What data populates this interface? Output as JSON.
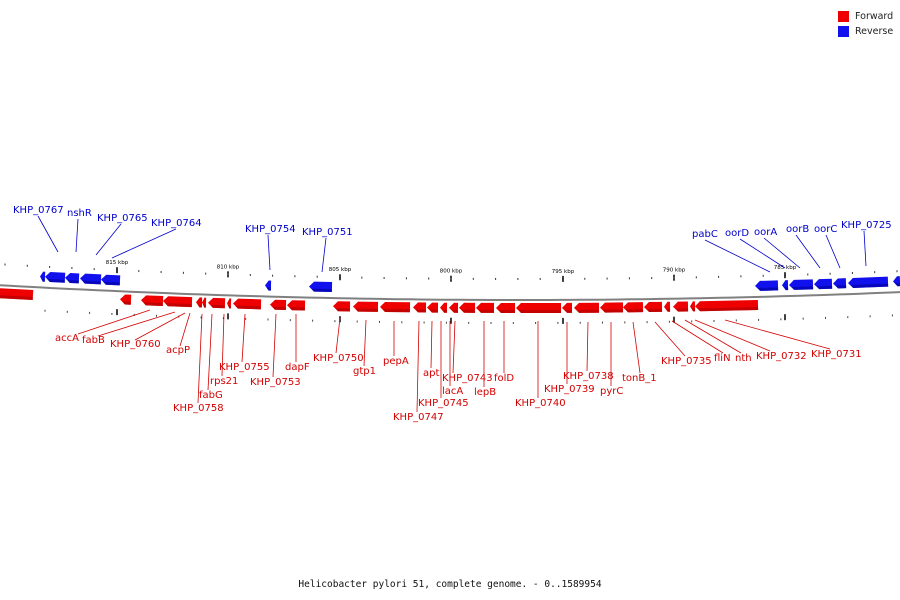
{
  "colors": {
    "forward": "#ee0000",
    "reverse": "#1111ee",
    "forward_dark": "#a80000",
    "reverse_dark": "#000099",
    "backbone": "#808080"
  },
  "legend": [
    {
      "label": "Forward",
      "color": "#ee0000"
    },
    {
      "label": "Reverse",
      "color": "#1111ee"
    }
  ],
  "caption": "Helicobacter pylori 51, complete genome. - 0..1589954",
  "scale_labels": [
    "815 kbp",
    "810 kbp",
    "805 kbp",
    "800 kbp",
    "795 kbp",
    "790 kbp",
    "785 kbp"
  ],
  "forward_labels": [
    "accA",
    "fabB",
    "KHP_0760",
    "acpP",
    "fabG",
    "KHP_0758",
    "rps21",
    "KHP_0755",
    "KHP_0753",
    "dapF",
    "KHP_0750",
    "gtp1",
    "pepA",
    "KHP_0747",
    "apt",
    "KHP_0745",
    "lacA",
    "KHP_0743",
    "lepB",
    "folD",
    "KHP_0740",
    "KHP_0739",
    "KHP_0738",
    "pyrC",
    "tonB_1",
    "KHP_0735",
    "fliN",
    "nth",
    "KHP_0732",
    "KHP_0731"
  ],
  "reverse_labels": [
    "KHP_0767",
    "nshR",
    "KHP_0765",
    "KHP_0764",
    "KHP_0754",
    "KHP_0751",
    "pabC",
    "oorD",
    "oorA",
    "oorB",
    "oorC",
    "KHP_0725"
  ]
}
